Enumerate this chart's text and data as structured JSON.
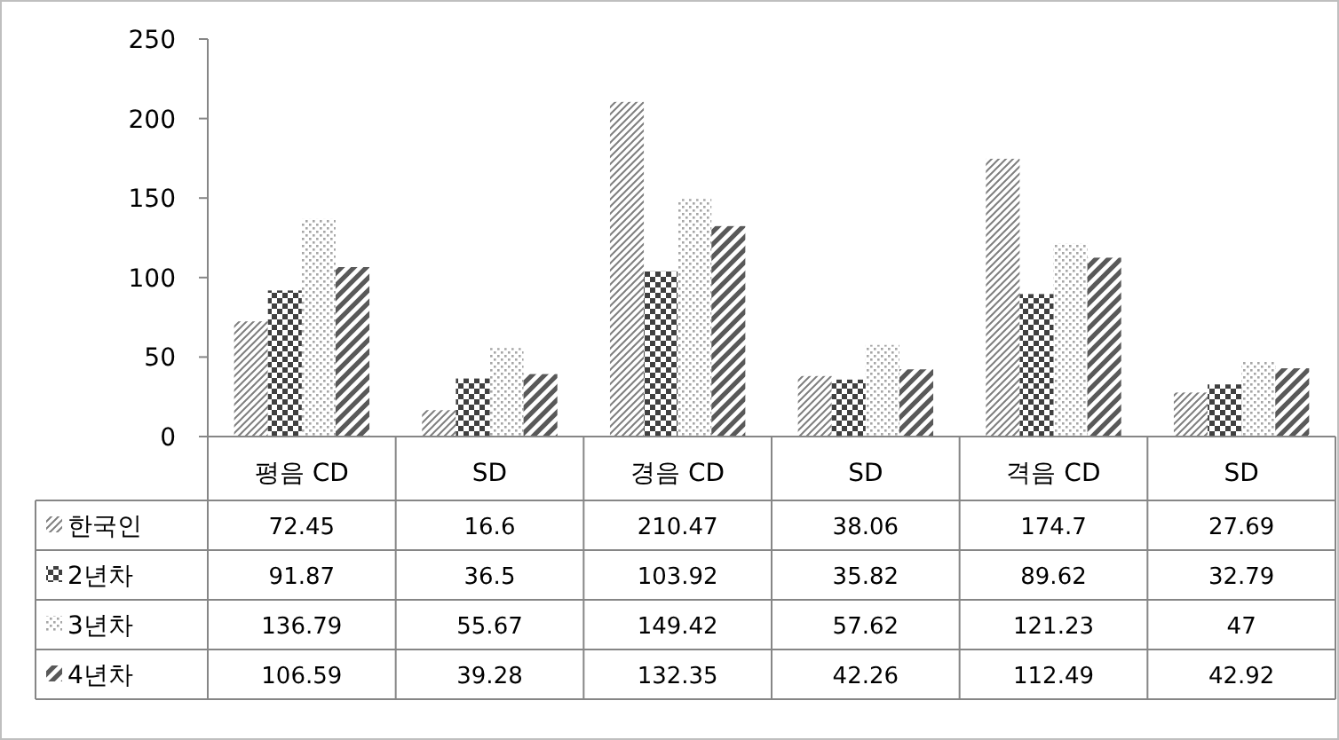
{
  "chart_data": {
    "type": "bar",
    "categories": [
      "평음 CD",
      "SD",
      "경음 CD",
      "SD",
      "격음 CD",
      "SD"
    ],
    "series": [
      {
        "name": "한국인",
        "color": "#7f7f7f",
        "values": [
          72.45,
          16.6,
          210.47,
          38.06,
          174.7,
          27.69
        ]
      },
      {
        "name": "2년차",
        "color": "#404040",
        "values": [
          91.87,
          36.5,
          103.92,
          35.82,
          89.62,
          32.79
        ]
      },
      {
        "name": "3년차",
        "color": "#a6a6a6",
        "values": [
          136.79,
          55.67,
          149.42,
          57.62,
          121.23,
          47
        ]
      },
      {
        "name": "4년차",
        "color": "#595959",
        "values": [
          106.59,
          39.28,
          132.35,
          42.26,
          112.49,
          42.92
        ]
      }
    ],
    "ylim": [
      0,
      250
    ],
    "yticks": [
      0,
      50,
      100,
      150,
      200,
      250
    ],
    "grid": false,
    "data_labels": true,
    "legend": "bottom left"
  }
}
